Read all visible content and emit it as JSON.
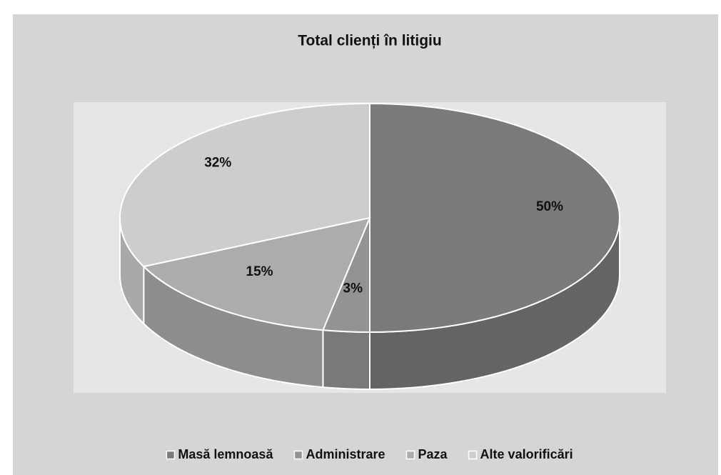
{
  "chart_data": {
    "type": "pie",
    "title": "Total clienți în litigiu",
    "categories": [
      "Masă lemnoasă",
      "Administrare",
      "Paza",
      "Alte valorificări"
    ],
    "values": [
      50,
      3,
      15,
      32
    ],
    "value_labels": [
      "50%",
      "3%",
      "15%",
      "32%"
    ],
    "colors": [
      "#7a7a7a",
      "#939393",
      "#acacac",
      "#cdcdcd"
    ],
    "legend": "bottom"
  }
}
